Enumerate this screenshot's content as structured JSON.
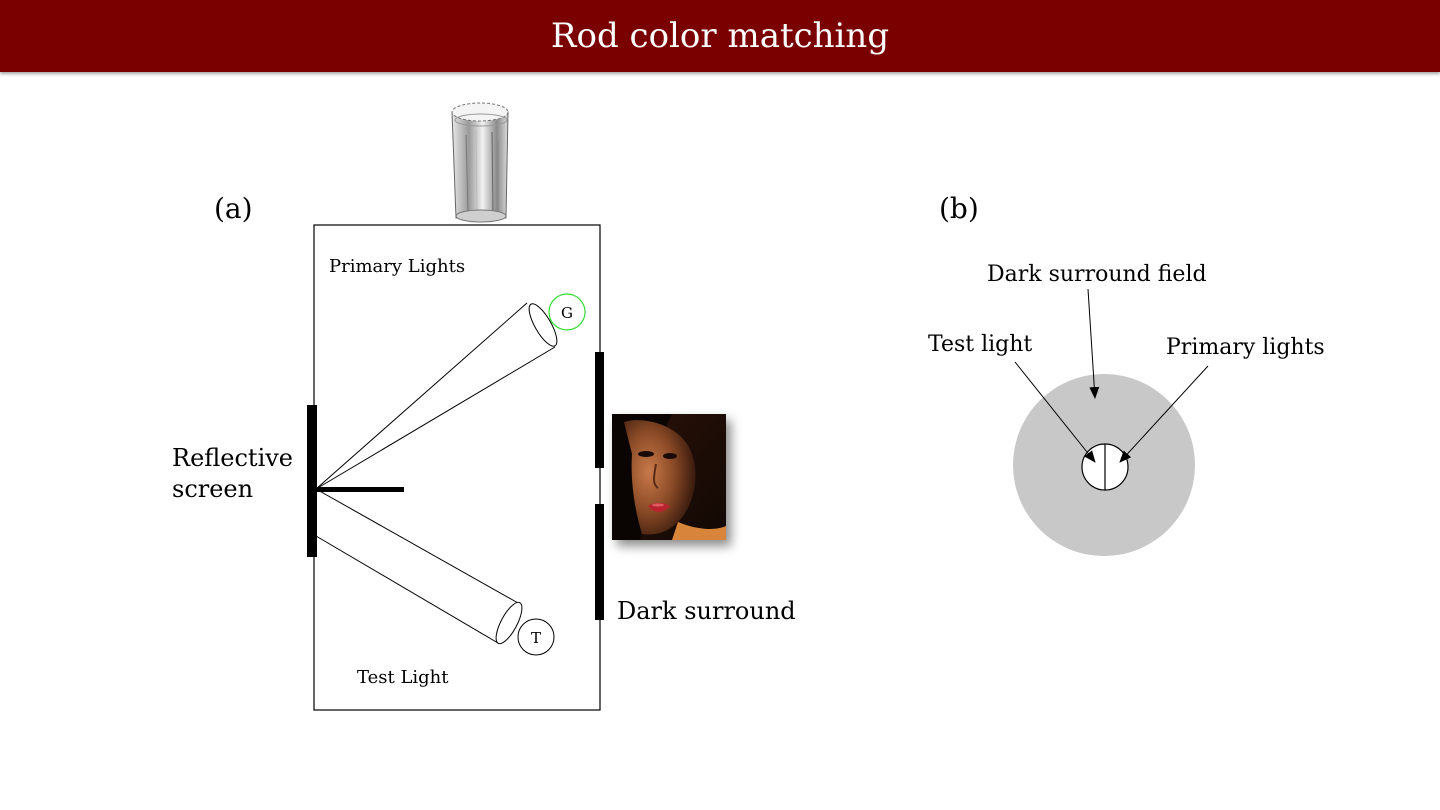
{
  "title": "Rod color matching",
  "colors": {
    "title_bar": "#7a0000",
    "title_text": "#ffffff",
    "green_light": "#33dd33",
    "surround_gray": "#c8c8c8"
  },
  "panel_a": {
    "label": "(a)",
    "primary_lights": "Primary Lights",
    "green_source": "G",
    "test_source": "T",
    "test_light": "Test Light",
    "reflective_screen_line1": "Reflective",
    "reflective_screen_line2": "screen",
    "dark_surround": "Dark surround"
  },
  "panel_b": {
    "label": "(b)",
    "dark_surround_field": "Dark surround field",
    "test_light": "Test light",
    "primary_lights": "Primary lights"
  }
}
